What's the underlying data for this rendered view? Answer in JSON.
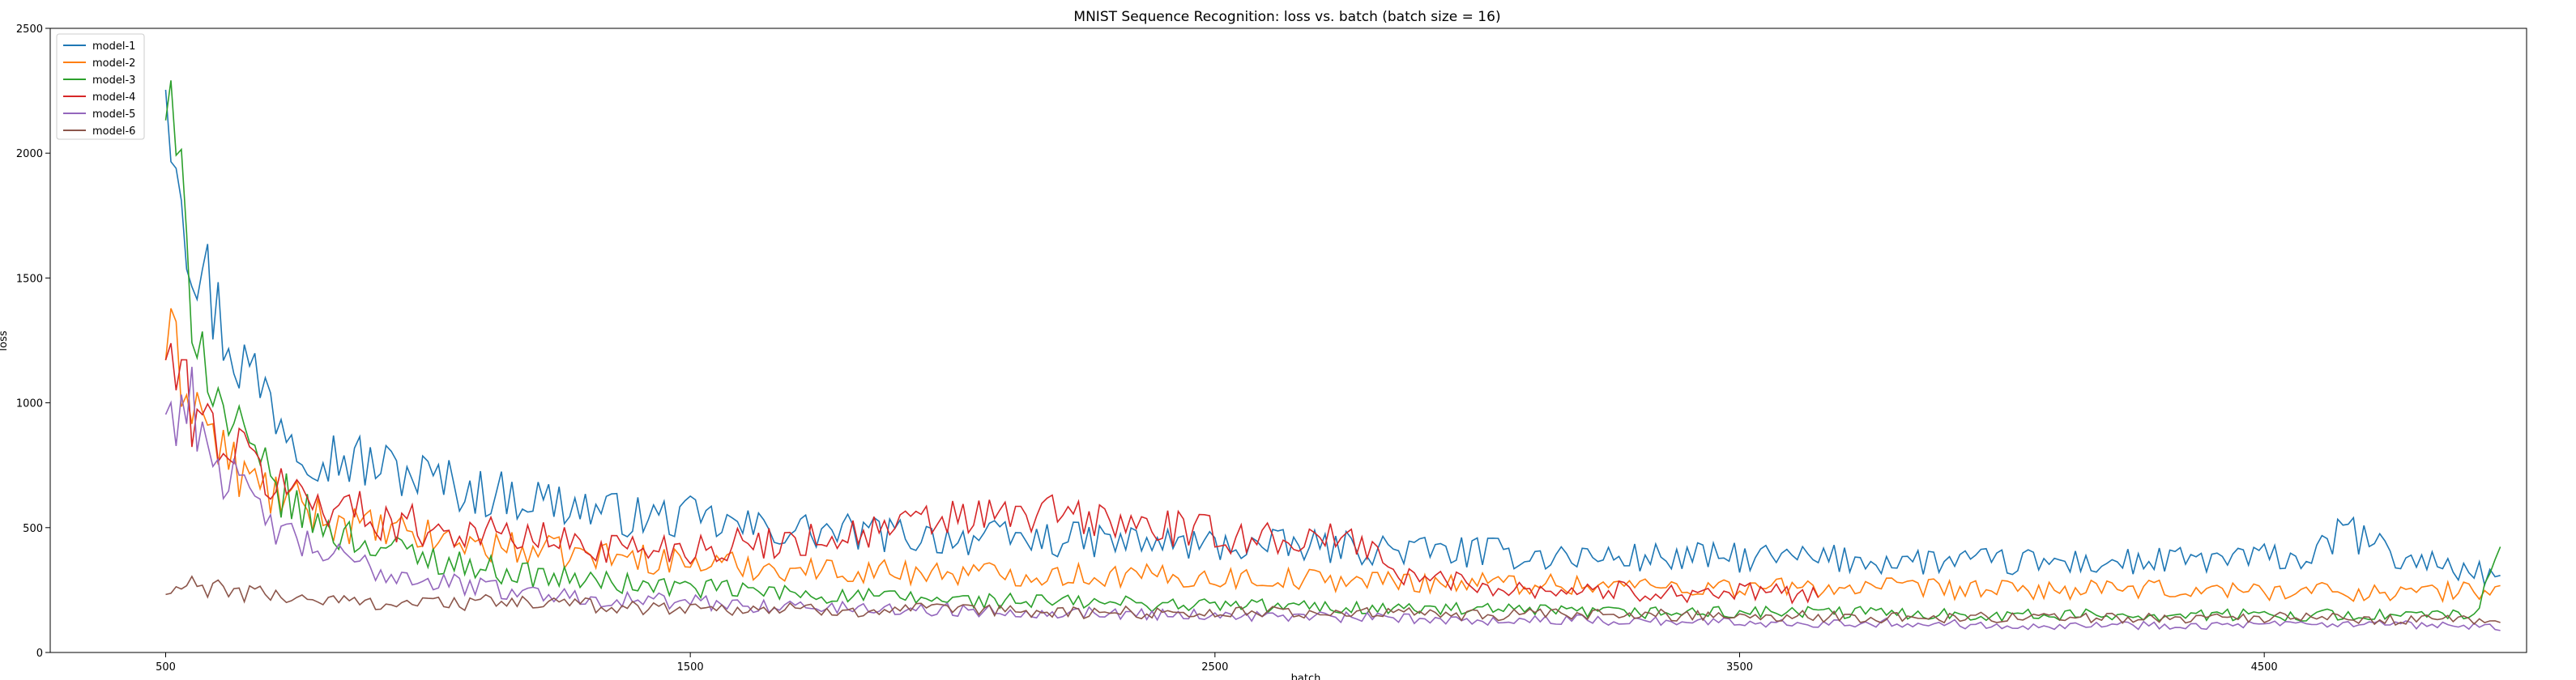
{
  "chart_data": {
    "type": "line",
    "title": "MNIST Sequence Recognition: loss vs. batch (batch size = 16)",
    "xlabel": "batch",
    "ylabel": "loss",
    "xlim": [
      280,
      5000
    ],
    "ylim": [
      0,
      2500
    ],
    "xticks": [
      500,
      1500,
      2500,
      3500,
      4500
    ],
    "yticks": [
      0,
      500,
      1000,
      1500,
      2000,
      2500
    ],
    "grid": false,
    "legend_position": "top-left",
    "series": [
      {
        "name": "model-1",
        "color": "#1f77b4",
        "x": [
          500,
          550,
          600,
          650,
          700,
          750,
          800,
          900,
          1000,
          1100,
          1200,
          1300,
          1400,
          1500,
          1600,
          1700,
          1800,
          1900,
          2000,
          2250,
          2500,
          2750,
          3000,
          3250,
          3500,
          3750,
          4000,
          4250,
          4500,
          4600,
          4650,
          4750,
          4850,
          4950
        ],
        "y": [
          2430,
          1650,
          1350,
          1150,
          1020,
          870,
          800,
          750,
          700,
          640,
          620,
          580,
          540,
          540,
          500,
          490,
          480,
          470,
          460,
          450,
          430,
          420,
          400,
          380,
          380,
          370,
          360,
          360,
          380,
          380,
          500,
          380,
          350,
          300
        ]
      },
      {
        "name": "model-2",
        "color": "#ff7f0e",
        "x": [
          500,
          550,
          600,
          650,
          700,
          750,
          800,
          900,
          1000,
          1100,
          1200,
          1300,
          1400,
          1500,
          1750,
          2000,
          2250,
          2500,
          2750,
          3000,
          3250,
          3500,
          3750,
          4000,
          4250,
          4500,
          4750,
          4950
        ],
        "y": [
          1240,
          1050,
          820,
          700,
          640,
          590,
          540,
          490,
          460,
          430,
          410,
          390,
          380,
          360,
          330,
          320,
          310,
          300,
          290,
          280,
          270,
          260,
          260,
          250,
          250,
          250,
          240,
          250
        ]
      },
      {
        "name": "model-3",
        "color": "#2ca02c",
        "x": [
          500,
          550,
          600,
          650,
          700,
          750,
          800,
          900,
          1000,
          1100,
          1200,
          1300,
          1400,
          1500,
          1750,
          2000,
          2250,
          2500,
          2750,
          3000,
          3250,
          3500,
          3750,
          4000,
          4250,
          4500,
          4750,
          4900,
          4950
        ],
        "y": [
          2220,
          1450,
          1000,
          820,
          680,
          580,
          500,
          430,
          380,
          340,
          310,
          290,
          270,
          260,
          230,
          210,
          200,
          190,
          180,
          170,
          160,
          160,
          160,
          150,
          150,
          150,
          150,
          150,
          380
        ]
      },
      {
        "name": "model-4",
        "color": "#d62728",
        "x": [
          500,
          550,
          600,
          650,
          700,
          750,
          800,
          850,
          900,
          1000,
          1100,
          1200,
          1300,
          1400,
          1500,
          1600,
          1700,
          1800,
          1900,
          2000,
          2100,
          2200,
          2300,
          2400,
          2500,
          2600,
          2700,
          2800,
          2850,
          2950,
          3050,
          3150,
          3250,
          3350,
          3450,
          3550,
          3650
        ],
        "y": [
          1200,
          980,
          870,
          780,
          690,
          640,
          600,
          580,
          540,
          500,
          480,
          460,
          430,
          420,
          420,
          430,
          450,
          470,
          500,
          540,
          540,
          560,
          520,
          500,
          470,
          460,
          450,
          440,
          300,
          290,
          260,
          250,
          250,
          240,
          240,
          240,
          230
        ]
      },
      {
        "name": "model-5",
        "color": "#9467bd",
        "x": [
          500,
          550,
          600,
          650,
          700,
          750,
          800,
          900,
          1000,
          1100,
          1200,
          1300,
          1400,
          1500,
          1750,
          2000,
          2250,
          2500,
          2750,
          3000,
          3250,
          3500,
          3750,
          4000,
          4250,
          4500,
          4750,
          4950
        ],
        "y": [
          960,
          1000,
          760,
          620,
          520,
          440,
          400,
          330,
          290,
          260,
          240,
          220,
          210,
          200,
          180,
          170,
          160,
          150,
          140,
          130,
          130,
          120,
          120,
          110,
          110,
          110,
          110,
          100
        ]
      },
      {
        "name": "model-6",
        "color": "#8c564b",
        "x": [
          500,
          550,
          600,
          650,
          700,
          750,
          800,
          900,
          1000,
          1100,
          1200,
          1300,
          1400,
          1500,
          1750,
          2000,
          2250,
          2500,
          2750,
          3000,
          3250,
          3500,
          3750,
          4000,
          4250,
          4500,
          4750,
          4950
        ],
        "y": [
          230,
          270,
          250,
          240,
          230,
          220,
          210,
          200,
          200,
          200,
          200,
          190,
          180,
          180,
          170,
          170,
          160,
          160,
          160,
          150,
          150,
          150,
          140,
          140,
          140,
          140,
          130,
          130
        ]
      }
    ]
  }
}
